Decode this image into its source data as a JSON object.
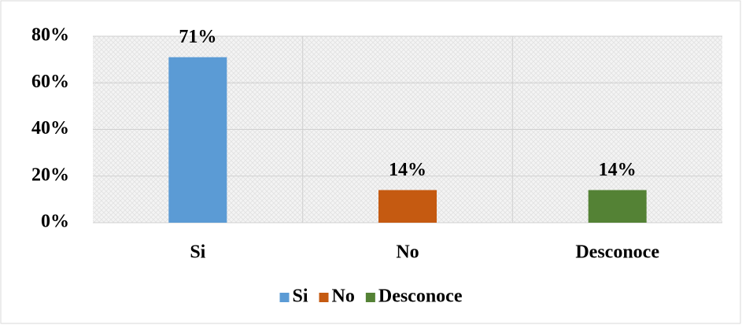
{
  "chart_data": {
    "type": "bar",
    "categories": [
      "Si",
      "No",
      "Desconoce"
    ],
    "values": [
      71,
      14,
      14
    ],
    "value_labels": [
      "71%",
      "14%",
      "14%"
    ],
    "colors": [
      "#5b9bd5",
      "#c55a11",
      "#548235"
    ],
    "ylim": [
      0,
      80
    ],
    "yticks": [
      {
        "value": 0,
        "label": "0%"
      },
      {
        "value": 20,
        "label": "20%"
      },
      {
        "value": 40,
        "label": "40%"
      },
      {
        "value": 60,
        "label": "60%"
      },
      {
        "value": 80,
        "label": "80%"
      }
    ],
    "grid": true,
    "legend": "bottom"
  }
}
